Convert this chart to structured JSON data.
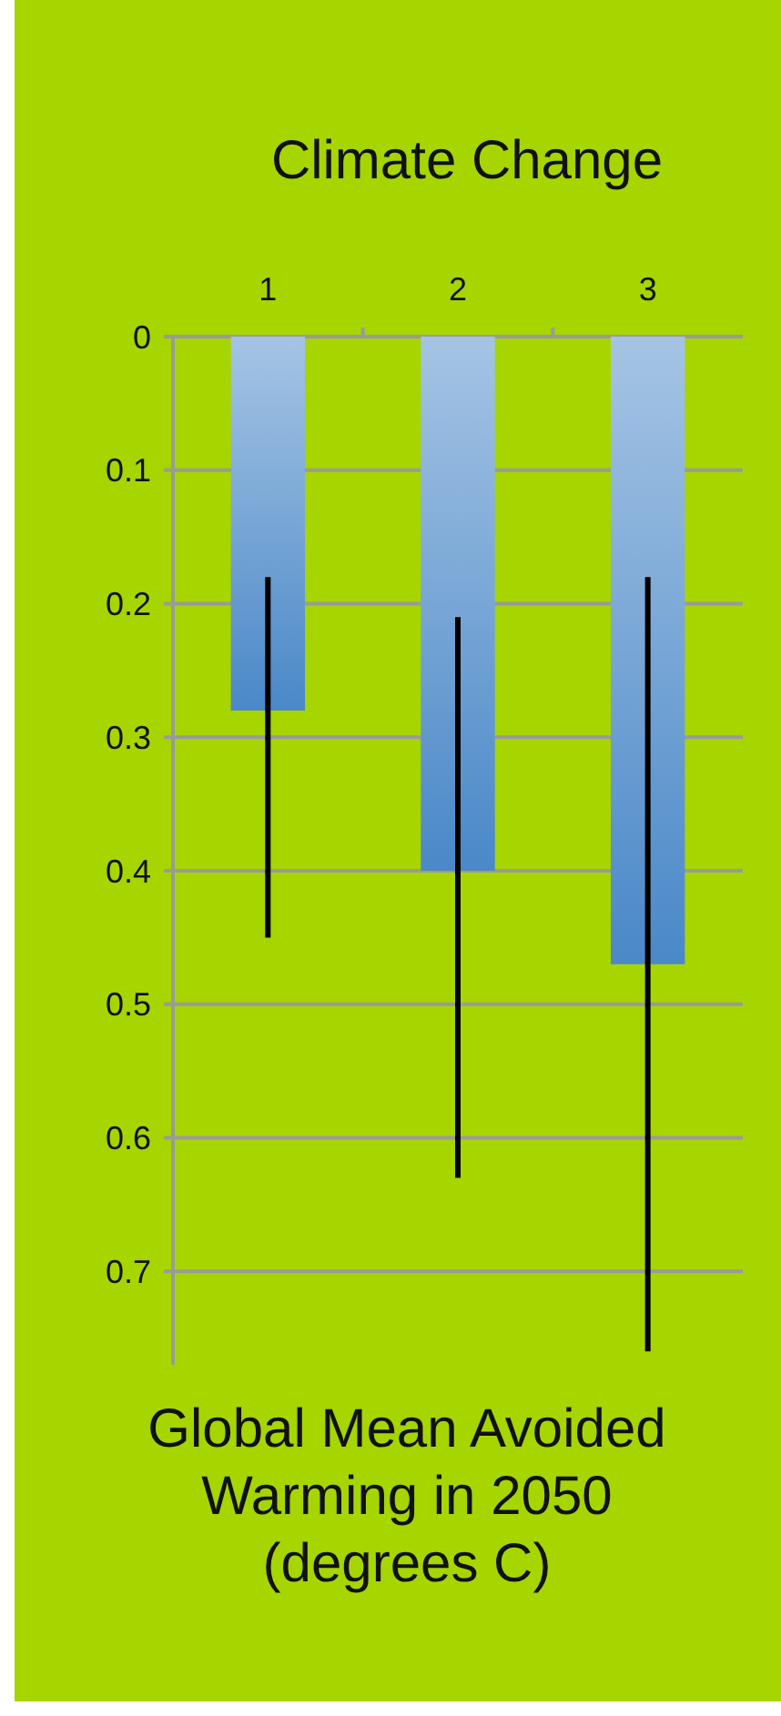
{
  "chart_data": {
    "type": "bar",
    "title": "Climate Change",
    "annotations": [
      "Global Mean Avoided Warming in 2050 (degrees C)"
    ],
    "categories": [
      "1",
      "2",
      "3"
    ],
    "values": [
      0.28,
      0.4,
      0.47
    ],
    "errors": [
      [
        0.18,
        0.45
      ],
      [
        0.21,
        0.63
      ],
      [
        0.18,
        0.76
      ]
    ],
    "color": "#4a88c8",
    "ylim": [
      0.77,
      0
    ],
    "yticks": [
      0,
      0.1,
      0.2,
      0.3,
      0.4,
      0.5,
      0.6,
      0.7
    ],
    "grid": "y"
  }
}
